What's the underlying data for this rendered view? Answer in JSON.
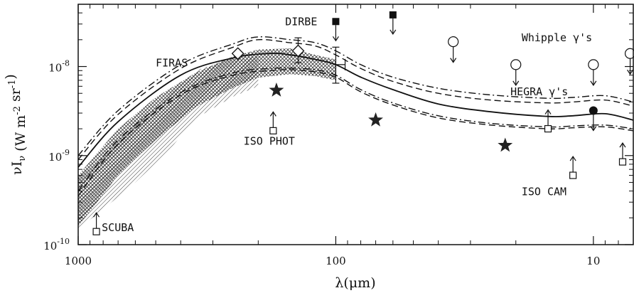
{
  "chart_data": {
    "type": "line",
    "xscale": "log-reversed",
    "yscale": "log",
    "xlim": [
      1000,
      7
    ],
    "ylim": [
      1e-10,
      5e-08
    ],
    "xlabel": "λ(μm)",
    "ylabel": "νI_ν (W m^-2 sr^-1)",
    "x_ticks": [
      {
        "value": 1000,
        "label": "1000"
      },
      {
        "value": 100,
        "label": "100"
      },
      {
        "value": 10,
        "label": "10"
      }
    ],
    "y_ticks": [
      {
        "value": 1e-10,
        "label": "10",
        "exp": "-10"
      },
      {
        "value": 1e-09,
        "label": "10",
        "exp": "-9"
      },
      {
        "value": 1e-08,
        "label": "10",
        "exp": "-8"
      }
    ],
    "series": [
      {
        "style": "solid",
        "points": [
          [
            1000,
            7.4e-10
          ],
          [
            700,
            2.4e-09
          ],
          [
            400,
            8e-09
          ],
          [
            250,
            1.25e-08
          ],
          [
            180,
            1.4e-08
          ],
          [
            150,
            1.35e-08
          ],
          [
            120,
            1.2e-08
          ],
          [
            100,
            1.05e-08
          ],
          [
            80,
            7.6e-09
          ],
          [
            60,
            5.5e-09
          ],
          [
            40,
            3.8e-09
          ],
          [
            25,
            3.1e-09
          ],
          [
            15,
            2.75e-09
          ],
          [
            12,
            2.8e-09
          ],
          [
            9,
            2.95e-09
          ],
          [
            7,
            2.5e-09
          ]
        ]
      },
      {
        "style": "dash-dot",
        "points": [
          [
            1000,
            1e-09
          ],
          [
            700,
            3.2e-09
          ],
          [
            400,
            1.05e-08
          ],
          [
            250,
            1.8e-08
          ],
          [
            200,
            2.15e-08
          ],
          [
            150,
            2e-08
          ],
          [
            120,
            1.85e-08
          ],
          [
            100,
            1.5e-08
          ],
          [
            80,
            1.05e-08
          ],
          [
            60,
            7.6e-09
          ],
          [
            40,
            5.7e-09
          ],
          [
            25,
            4.8e-09
          ],
          [
            15,
            4.4e-09
          ],
          [
            12,
            4.5e-09
          ],
          [
            9,
            4.7e-09
          ],
          [
            7,
            4e-09
          ]
        ]
      },
      {
        "style": "dashed",
        "points": [
          [
            1000,
            9e-10
          ],
          [
            700,
            2.9e-09
          ],
          [
            400,
            9.5e-09
          ],
          [
            250,
            1.65e-08
          ],
          [
            200,
            2e-08
          ],
          [
            150,
            1.85e-08
          ],
          [
            120,
            1.7e-08
          ],
          [
            100,
            1.35e-08
          ],
          [
            80,
            9.5e-09
          ],
          [
            60,
            6.8e-09
          ],
          [
            40,
            5e-09
          ],
          [
            25,
            4.2e-09
          ],
          [
            15,
            3.9e-09
          ],
          [
            12,
            4e-09
          ],
          [
            9,
            4.2e-09
          ],
          [
            7,
            3.6e-09
          ]
        ]
      },
      {
        "style": "dash-dot",
        "points": [
          [
            1000,
            4e-10
          ],
          [
            700,
            1.5e-09
          ],
          [
            400,
            5.1e-09
          ],
          [
            250,
            8.5e-09
          ],
          [
            180,
            9.5e-09
          ],
          [
            150,
            9.6e-09
          ],
          [
            120,
            9.2e-09
          ],
          [
            100,
            8e-09
          ],
          [
            80,
            5.5e-09
          ],
          [
            60,
            3.9e-09
          ],
          [
            40,
            2.8e-09
          ],
          [
            25,
            2.3e-09
          ],
          [
            15,
            2.1e-09
          ],
          [
            12,
            2.15e-09
          ],
          [
            9,
            2.2e-09
          ],
          [
            7,
            2e-09
          ]
        ]
      },
      {
        "style": "dashed",
        "points": [
          [
            1000,
            3.5e-10
          ],
          [
            700,
            1.35e-09
          ],
          [
            400,
            4.8e-09
          ],
          [
            250,
            8e-09
          ],
          [
            180,
            9e-09
          ],
          [
            150,
            9.2e-09
          ],
          [
            120,
            8.7e-09
          ],
          [
            100,
            7.6e-09
          ],
          [
            80,
            5.2e-09
          ],
          [
            60,
            3.7e-09
          ],
          [
            40,
            2.65e-09
          ],
          [
            25,
            2.2e-09
          ],
          [
            15,
            2e-09
          ],
          [
            12,
            2.05e-09
          ],
          [
            9,
            2.1e-09
          ],
          [
            7,
            1.9e-09
          ]
        ]
      }
    ],
    "shaded_regions": [
      {
        "name": "FIRAS",
        "pattern": "hatch",
        "upper": [
          [
            1000,
            5.5e-10
          ],
          [
            800,
            1e-09
          ],
          [
            600,
            2.2e-09
          ],
          [
            450,
            4.5e-09
          ],
          [
            350,
            9e-09
          ],
          [
            250,
            1.25e-08
          ],
          [
            200,
            1.3e-08
          ]
        ],
        "lower": [
          [
            1000,
            1.5e-10
          ],
          [
            800,
            2.5e-10
          ],
          [
            600,
            5e-10
          ],
          [
            450,
            1.1e-09
          ],
          [
            350,
            2.6e-09
          ],
          [
            250,
            4.6e-09
          ],
          [
            200,
            6e-09
          ]
        ]
      },
      {
        "name": "",
        "pattern": "crosshatch",
        "upper": [
          [
            1000,
            6e-10
          ],
          [
            700,
            2e-09
          ],
          [
            500,
            4.5e-09
          ],
          [
            350,
            8.5e-09
          ],
          [
            250,
            1.3e-08
          ],
          [
            200,
            1.55e-08
          ],
          [
            150,
            1.6e-08
          ],
          [
            120,
            1.35e-08
          ],
          [
            100,
            1.2e-08
          ]
        ],
        "lower": [
          [
            1000,
            1.6e-10
          ],
          [
            700,
            6e-10
          ],
          [
            500,
            1.5e-09
          ],
          [
            350,
            3.5e-09
          ],
          [
            250,
            5.8e-09
          ],
          [
            200,
            7.5e-09
          ],
          [
            150,
            8.2e-09
          ],
          [
            120,
            7.8e-09
          ],
          [
            100,
            7e-09
          ]
        ]
      }
    ],
    "detections": [
      {
        "name": "DIRBE",
        "marker": "diamond",
        "x": 240,
        "y": 1.4e-08
      },
      {
        "name": "DIRBE",
        "marker": "diamond",
        "x": 140,
        "y": 1.5e-08,
        "err": [
          1.1e-08,
          2.1e-08
        ],
        "xerr": [
          160,
          120
        ]
      },
      {
        "name": "DIRBE",
        "marker": "errorbox",
        "x": 100,
        "y": 1.05e-08,
        "err": [
          6.5e-09,
          1.65e-08
        ],
        "xerr": [
          102,
          92
        ]
      }
    ],
    "upper_limits": [
      {
        "name": "DIRBE",
        "marker": "filled-square",
        "x": 100,
        "y": 3.2e-08
      },
      {
        "name": "DIRBE",
        "marker": "filled-square",
        "x": 60,
        "y": 3.8e-08
      },
      {
        "name": "Whipple γ's",
        "marker": "open-circle",
        "x": 35,
        "y": 1.9e-08
      },
      {
        "name": "Whipple γ's",
        "marker": "open-circle",
        "x": 20,
        "y": 1.05e-08
      },
      {
        "name": "Whipple γ's",
        "marker": "open-circle",
        "x": 10,
        "y": 1.05e-08
      },
      {
        "name": "Whipple γ's",
        "marker": "open-circle",
        "x": 7.2,
        "y": 1.4e-08
      },
      {
        "name": "HEGRA γ's",
        "marker": "filled-circle",
        "x": 10,
        "y": 3.2e-09
      }
    ],
    "lower_limits": [
      {
        "name": "SCUBA",
        "marker": "open-square",
        "x": 850,
        "y": 1.4e-10
      },
      {
        "name": "ISO PHOT",
        "marker": "open-square",
        "x": 175,
        "y": 1.9e-09
      },
      {
        "name": "ISO CAM",
        "marker": "open-square",
        "x": 15,
        "y": 2e-09
      },
      {
        "name": "ISO CAM",
        "marker": "open-square",
        "x": 12,
        "y": 6e-10
      },
      {
        "name": "ISO CAM",
        "marker": "open-square",
        "x": 7.7,
        "y": 8.5e-10
      }
    ],
    "stars": [
      {
        "x": 170,
        "y": 5.4e-09
      },
      {
        "x": 70,
        "y": 2.5e-09
      },
      {
        "x": 22,
        "y": 1.3e-09
      }
    ],
    "annotations": [
      {
        "text": "DIRBE",
        "x": 118,
        "y": 3.2e-08,
        "anchor": "end"
      },
      {
        "text": "FIRAS",
        "x": 500,
        "y": 1.1e-08,
        "anchor": "start"
      },
      {
        "text": "Whipple γ's",
        "x": 19,
        "y": 2.1e-08,
        "anchor": "start"
      },
      {
        "text": "HEGRA γ's",
        "x": 21,
        "y": 5.2e-09,
        "anchor": "start"
      },
      {
        "text": "ISO PHOT",
        "x": 228,
        "y": 1.45e-09,
        "anchor": "start"
      },
      {
        "text": "ISO CAM",
        "x": 19,
        "y": 3.95e-10,
        "anchor": "start"
      },
      {
        "text": "SCUBA",
        "x": 810,
        "y": 1.55e-10,
        "anchor": "start"
      }
    ]
  }
}
